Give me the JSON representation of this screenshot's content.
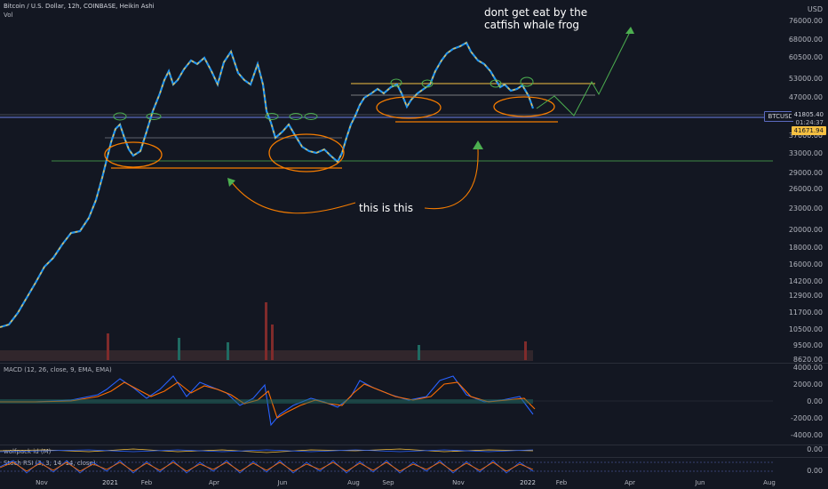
{
  "header": {
    "symbol_info": "Bitcoin / U.S. Dollar, 12h, COINBASE, Heikin Ashi",
    "volume_label": "Vol",
    "currency": "USD"
  },
  "price_axis": [
    "76000.00",
    "68000.00",
    "60500.00",
    "53000.00",
    "47000.00",
    "41671.94",
    "37000.00",
    "33000.00",
    "29000.00",
    "26000.00",
    "23000.00",
    "20000.00",
    "18000.00",
    "16000.00",
    "14200.00",
    "12900.00",
    "11700.00",
    "10500.00",
    "9500.00",
    "8620.00"
  ],
  "price_tags": {
    "symbol": "BTCUSD",
    "last_price": "41805.40",
    "countdown": "01:24:37",
    "level_price": "41671.94"
  },
  "macd": {
    "title": "MACD (12, 26, close, 9, EMA, EMA)",
    "axis": [
      "4000.00",
      "2000.00",
      "0.00",
      "-2000.00",
      "-4000.00"
    ]
  },
  "wolfpack": {
    "title": "wolfpack id (M)",
    "axis": [
      "0.00"
    ]
  },
  "stoch": {
    "title": "Stoch RSI (3, 3, 14, 14, close)",
    "axis": [
      "0.00"
    ]
  },
  "time_axis": [
    "Nov",
    "2021",
    "Feb",
    "Apr",
    "Jun",
    "Aug",
    "Sep",
    "Nov",
    "2022",
    "Feb",
    "Apr",
    "Jun",
    "Aug"
  ],
  "annotations": {
    "top_line1": "dont get eat by the",
    "top_line2": "catfish whale frog",
    "middle": "this is this"
  },
  "colors": {
    "background": "#131722",
    "candle_up": "#2196f3",
    "candle_down": "#f5c042",
    "annotation_orange": "#f57c00",
    "arrow_green": "#4caf50"
  }
}
